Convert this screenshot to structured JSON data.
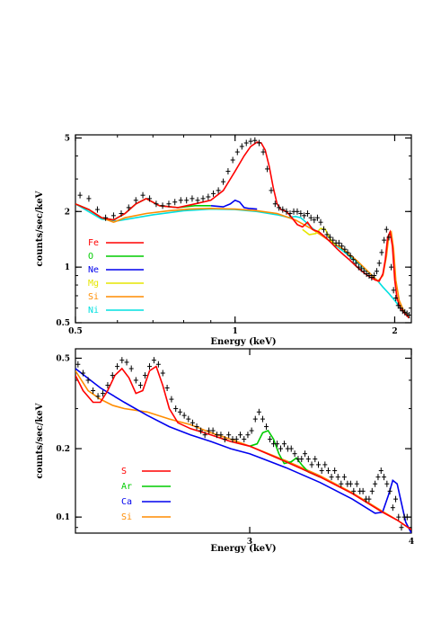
{
  "chart_data": [
    {
      "type": "line",
      "xlabel": "Energy (keV)",
      "ylabel": "counts/sec/keV",
      "xscale": "log",
      "yscale": "log",
      "xlim": [
        0.5,
        2.15
      ],
      "ylim": [
        0.5,
        5.2
      ],
      "xticks": [
        {
          "v": 0.5,
          "label": "0.5"
        },
        {
          "v": 1,
          "label": "1"
        },
        {
          "v": 2,
          "label": "2"
        }
      ],
      "yticks": [
        {
          "v": 0.5,
          "label": "0.5"
        },
        {
          "v": 1,
          "label": "1"
        },
        {
          "v": 2,
          "label": "2"
        },
        {
          "v": 5,
          "label": "5"
        }
      ],
      "legend_position": "lower-left",
      "legend": [
        {
          "name": "Fe",
          "color": "#ff0000"
        },
        {
          "name": "O",
          "color": "#00cc00"
        },
        {
          "name": "Ne",
          "color": "#0000ee"
        },
        {
          "name": "Mg",
          "color": "#e6e600"
        },
        {
          "name": "Si",
          "color": "#ff8c00"
        },
        {
          "name": "Ni",
          "color": "#00e0e0"
        }
      ],
      "data_points": {
        "x": [
          0.51,
          0.53,
          0.55,
          0.57,
          0.59,
          0.61,
          0.63,
          0.65,
          0.67,
          0.69,
          0.71,
          0.73,
          0.75,
          0.77,
          0.79,
          0.81,
          0.83,
          0.85,
          0.87,
          0.89,
          0.91,
          0.93,
          0.95,
          0.97,
          0.99,
          1.01,
          1.03,
          1.05,
          1.07,
          1.09,
          1.11,
          1.13,
          1.15,
          1.17,
          1.19,
          1.21,
          1.23,
          1.25,
          1.27,
          1.29,
          1.31,
          1.33,
          1.35,
          1.37,
          1.39,
          1.41,
          1.43,
          1.45,
          1.47,
          1.49,
          1.51,
          1.53,
          1.55,
          1.57,
          1.59,
          1.61,
          1.63,
          1.65,
          1.67,
          1.69,
          1.71,
          1.73,
          1.75,
          1.77,
          1.79,
          1.81,
          1.83,
          1.85,
          1.87,
          1.89,
          1.91,
          1.93,
          1.95,
          1.97,
          1.99,
          2.01,
          2.03,
          2.05,
          2.07,
          2.09,
          2.11,
          2.13
        ],
        "y": [
          2.45,
          2.35,
          2.05,
          1.85,
          1.9,
          1.95,
          2.1,
          2.3,
          2.45,
          2.35,
          2.2,
          2.15,
          2.2,
          2.25,
          2.3,
          2.3,
          2.35,
          2.3,
          2.35,
          2.4,
          2.5,
          2.6,
          2.9,
          3.3,
          3.8,
          4.2,
          4.5,
          4.7,
          4.8,
          4.85,
          4.7,
          4.2,
          3.4,
          2.6,
          2.2,
          2.1,
          2.05,
          2.0,
          1.95,
          2.0,
          2.0,
          1.95,
          1.9,
          1.95,
          1.85,
          1.8,
          1.85,
          1.75,
          1.6,
          1.5,
          1.45,
          1.4,
          1.35,
          1.35,
          1.3,
          1.25,
          1.2,
          1.15,
          1.1,
          1.05,
          1.0,
          0.98,
          0.95,
          0.92,
          0.9,
          0.88,
          0.9,
          0.95,
          1.05,
          1.2,
          1.4,
          1.6,
          1.45,
          1.0,
          0.75,
          0.68,
          0.62,
          0.6,
          0.58,
          0.57,
          0.56,
          0.55
        ]
      },
      "series": [
        {
          "name": "Fe",
          "color": "#ff0000",
          "x": [
            0.5,
            0.53,
            0.56,
            0.59,
            0.62,
            0.65,
            0.68,
            0.72,
            0.78,
            0.84,
            0.9,
            0.95,
            1.0,
            1.04,
            1.07,
            1.1,
            1.12,
            1.14,
            1.16,
            1.18,
            1.2,
            1.22,
            1.25,
            1.28,
            1.31,
            1.34,
            1.37,
            1.4,
            1.44,
            1.48,
            1.52,
            1.56,
            1.6,
            1.64,
            1.68,
            1.72,
            1.76,
            1.8,
            1.84,
            1.87,
            1.9,
            1.92,
            1.94,
            1.96,
            1.98,
            2.0,
            2.02,
            2.05,
            2.09,
            2.13
          ],
          "y": [
            2.2,
            2.05,
            1.85,
            1.8,
            1.95,
            2.2,
            2.35,
            2.15,
            2.1,
            2.2,
            2.3,
            2.6,
            3.3,
            4.0,
            4.5,
            4.75,
            4.7,
            4.3,
            3.5,
            2.7,
            2.2,
            2.05,
            2.0,
            1.85,
            1.7,
            1.65,
            1.75,
            1.6,
            1.55,
            1.45,
            1.35,
            1.25,
            1.17,
            1.1,
            1.03,
            0.97,
            0.92,
            0.88,
            0.85,
            0.84,
            0.92,
            1.1,
            1.45,
            1.55,
            1.3,
            0.85,
            0.68,
            0.6,
            0.56,
            0.53
          ]
        },
        {
          "name": "O",
          "color": "#00cc00",
          "x": [
            0.5,
            0.53,
            0.56,
            0.59,
            0.62,
            0.65,
            0.68,
            0.72,
            0.78,
            0.84,
            0.9
          ],
          "y": [
            2.2,
            2.05,
            1.85,
            1.8,
            1.95,
            2.2,
            2.35,
            2.15,
            2.1,
            2.15,
            2.15
          ]
        },
        {
          "name": "Ne",
          "color": "#0000ee",
          "x": [
            0.9,
            0.95,
            0.98,
            1.0,
            1.02,
            1.04,
            1.06,
            1.1
          ],
          "y": [
            2.15,
            2.12,
            2.2,
            2.3,
            2.25,
            2.1,
            2.08,
            2.06
          ]
        },
        {
          "name": "Mg",
          "color": "#e6e600",
          "x": [
            1.34,
            1.38,
            1.42,
            1.45,
            1.48,
            1.5,
            1.52,
            1.55
          ],
          "y": [
            1.6,
            1.5,
            1.52,
            1.62,
            1.6,
            1.48,
            1.38,
            1.32
          ]
        },
        {
          "name": "Si",
          "color": "#ff8c00",
          "x": [
            0.5,
            0.53,
            0.56,
            0.59,
            0.62,
            0.68,
            0.75,
            0.82,
            0.9,
            1.0,
            1.1,
            1.2,
            1.3,
            1.4,
            1.5,
            1.6,
            1.7,
            1.8,
            1.86,
            1.9,
            1.93,
            1.95,
            1.97,
            1.99,
            2.01,
            2.04,
            2.08,
            2.13
          ],
          "y": [
            2.2,
            2.05,
            1.85,
            1.75,
            1.85,
            1.95,
            2.02,
            2.06,
            2.08,
            2.06,
            2.02,
            1.95,
            1.8,
            1.6,
            1.4,
            1.25,
            1.08,
            0.92,
            0.84,
            0.9,
            1.15,
            1.5,
            1.55,
            1.25,
            0.85,
            0.66,
            0.58,
            0.53
          ]
        },
        {
          "name": "Ni",
          "color": "#00e0e0",
          "x": [
            0.5,
            0.56,
            0.6,
            0.7,
            0.8,
            0.9,
            1.0,
            1.1,
            1.2,
            1.26,
            1.3,
            1.33,
            1.36,
            1.4,
            1.5,
            1.6,
            1.7,
            1.8,
            1.86,
            1.9,
            1.95,
            2.0,
            2.05,
            2.1,
            2.13
          ],
          "y": [
            2.2,
            1.82,
            1.78,
            1.92,
            2.02,
            2.06,
            2.05,
            2.0,
            1.92,
            1.86,
            1.88,
            1.85,
            1.75,
            1.62,
            1.4,
            1.22,
            1.06,
            0.92,
            0.84,
            0.78,
            0.72,
            0.66,
            0.6,
            0.56,
            0.53
          ]
        }
      ]
    },
    {
      "type": "line",
      "xlabel": "Energy (keV)",
      "ylabel": "counts/sec/keV",
      "xscale": "log",
      "yscale": "log",
      "xlim": [
        2.2,
        4.0
      ],
      "ylim": [
        0.085,
        0.55
      ],
      "xticks": [
        {
          "v": 3,
          "label": "3"
        },
        {
          "v": 4,
          "label": "4"
        }
      ],
      "yticks": [
        {
          "v": 0.1,
          "label": "0.1"
        },
        {
          "v": 0.2,
          "label": "0.2"
        },
        {
          "v": 0.5,
          "label": "0.5"
        }
      ],
      "legend_position": "lower-left",
      "legend": [
        {
          "name": "S",
          "color": "#ff0000"
        },
        {
          "name": "Ar",
          "color": "#00cc00"
        },
        {
          "name": "Ca",
          "color": "#0000ee"
        },
        {
          "name": "Si",
          "color": "#ff8c00"
        }
      ],
      "data_points": {
        "x": [
          2.21,
          2.23,
          2.25,
          2.27,
          2.29,
          2.31,
          2.33,
          2.35,
          2.37,
          2.39,
          2.41,
          2.43,
          2.45,
          2.47,
          2.49,
          2.51,
          2.53,
          2.55,
          2.57,
          2.59,
          2.61,
          2.63,
          2.65,
          2.67,
          2.69,
          2.71,
          2.73,
          2.75,
          2.77,
          2.79,
          2.81,
          2.83,
          2.85,
          2.87,
          2.89,
          2.91,
          2.93,
          2.95,
          2.97,
          2.99,
          3.01,
          3.03,
          3.05,
          3.07,
          3.09,
          3.11,
          3.13,
          3.15,
          3.17,
          3.19,
          3.21,
          3.23,
          3.25,
          3.27,
          3.29,
          3.31,
          3.33,
          3.35,
          3.37,
          3.39,
          3.41,
          3.43,
          3.45,
          3.47,
          3.49,
          3.51,
          3.53,
          3.55,
          3.57,
          3.59,
          3.61,
          3.63,
          3.65,
          3.67,
          3.69,
          3.71,
          3.73,
          3.75,
          3.77,
          3.79,
          3.81,
          3.83,
          3.85,
          3.87,
          3.89,
          3.91,
          3.93,
          3.95,
          3.97
        ],
        "y": [
          0.47,
          0.43,
          0.4,
          0.36,
          0.34,
          0.35,
          0.38,
          0.42,
          0.46,
          0.49,
          0.48,
          0.45,
          0.4,
          0.38,
          0.42,
          0.46,
          0.49,
          0.47,
          0.43,
          0.37,
          0.33,
          0.3,
          0.29,
          0.28,
          0.27,
          0.26,
          0.25,
          0.24,
          0.23,
          0.24,
          0.24,
          0.23,
          0.23,
          0.22,
          0.23,
          0.22,
          0.22,
          0.23,
          0.22,
          0.23,
          0.24,
          0.27,
          0.29,
          0.27,
          0.25,
          0.22,
          0.21,
          0.21,
          0.2,
          0.21,
          0.2,
          0.2,
          0.19,
          0.18,
          0.18,
          0.19,
          0.18,
          0.17,
          0.18,
          0.17,
          0.16,
          0.17,
          0.16,
          0.15,
          0.16,
          0.15,
          0.14,
          0.15,
          0.14,
          0.14,
          0.13,
          0.14,
          0.13,
          0.13,
          0.12,
          0.12,
          0.13,
          0.14,
          0.15,
          0.16,
          0.15,
          0.14,
          0.13,
          0.11,
          0.12,
          0.1,
          0.09,
          0.1,
          0.1
        ]
      },
      "series": [
        {
          "name": "S",
          "color": "#ff0000",
          "x": [
            2.2,
            2.23,
            2.27,
            2.3,
            2.33,
            2.36,
            2.39,
            2.42,
            2.45,
            2.48,
            2.51,
            2.54,
            2.57,
            2.6,
            2.64,
            2.7,
            2.8,
            2.9,
            3.0,
            3.2,
            3.4,
            3.6,
            3.8,
            3.9,
            4.0
          ],
          "y": [
            0.42,
            0.36,
            0.32,
            0.32,
            0.36,
            0.42,
            0.45,
            0.41,
            0.35,
            0.36,
            0.44,
            0.46,
            0.38,
            0.3,
            0.26,
            0.245,
            0.23,
            0.215,
            0.205,
            0.175,
            0.15,
            0.127,
            0.105,
            0.097,
            0.088
          ]
        },
        {
          "name": "Ar",
          "color": "#00cc00",
          "x": [
            3.0,
            3.04,
            3.07,
            3.1,
            3.13,
            3.16,
            3.19,
            3.23,
            3.26,
            3.29,
            3.33,
            3.4
          ],
          "y": [
            0.205,
            0.21,
            0.235,
            0.24,
            0.22,
            0.19,
            0.172,
            0.175,
            0.182,
            0.17,
            0.158,
            0.15
          ]
        },
        {
          "name": "Ca",
          "color": "#0000ee",
          "x": [
            2.2,
            2.3,
            2.4,
            2.5,
            2.6,
            2.7,
            2.8,
            2.9,
            3.0,
            3.2,
            3.4,
            3.6,
            3.75,
            3.8,
            3.84,
            3.87,
            3.9,
            3.93,
            3.96,
            4.0
          ],
          "y": [
            0.45,
            0.37,
            0.32,
            0.28,
            0.25,
            0.23,
            0.215,
            0.2,
            0.19,
            0.165,
            0.142,
            0.12,
            0.104,
            0.105,
            0.125,
            0.145,
            0.14,
            0.115,
            0.095,
            0.085
          ]
        },
        {
          "name": "Si",
          "color": "#ff8c00",
          "x": [
            2.2,
            2.25,
            2.3,
            2.35,
            2.4,
            2.5,
            2.6,
            2.7,
            2.8,
            2.9,
            3.0,
            3.2,
            3.4,
            3.6,
            3.8,
            3.9,
            4.0
          ],
          "y": [
            0.44,
            0.36,
            0.33,
            0.31,
            0.3,
            0.29,
            0.27,
            0.255,
            0.235,
            0.22,
            0.205,
            0.177,
            0.152,
            0.128,
            0.106,
            0.097,
            0.088
          ]
        }
      ]
    }
  ]
}
